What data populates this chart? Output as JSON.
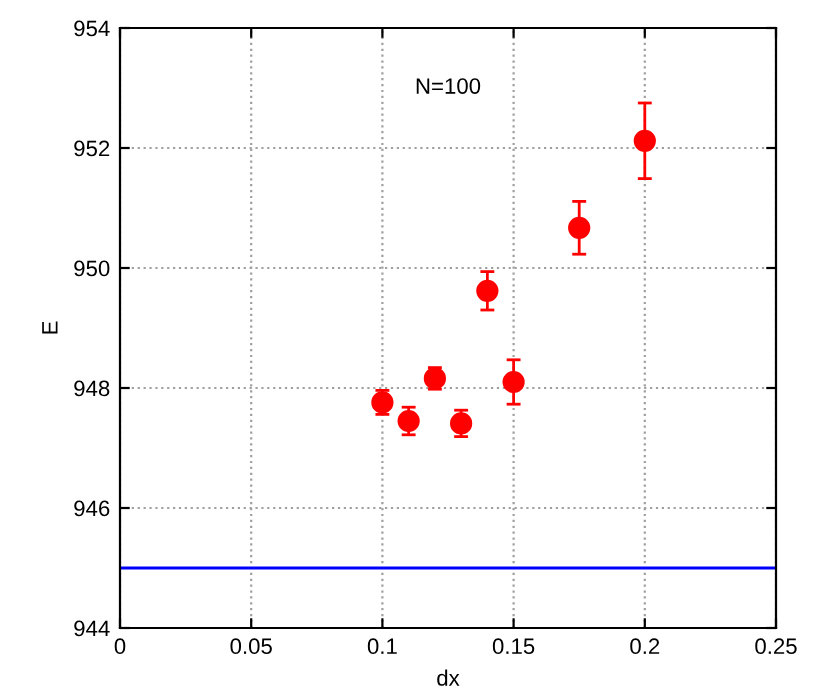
{
  "chart_data": {
    "type": "scatter",
    "xlabel": "dx",
    "ylabel": "E",
    "x": [
      0.1,
      0.11,
      0.12,
      0.13,
      0.14,
      0.15,
      0.175,
      0.2
    ],
    "series": [
      {
        "color": "#ff0000",
        "values": [
          947.76,
          947.45,
          948.16,
          947.41,
          949.62,
          948.1,
          950.67,
          952.12
        ],
        "errors": [
          0.2,
          0.23,
          0.18,
          0.22,
          0.32,
          0.37,
          0.44,
          0.63
        ]
      }
    ],
    "marker": "circle",
    "xlim": [
      0,
      0.25
    ],
    "xticks": [
      0,
      0.05,
      0.1,
      0.15,
      0.2,
      0.25
    ],
    "ylim": [
      944,
      954
    ],
    "yticks": [
      944,
      946,
      948,
      950,
      952,
      954
    ],
    "grid": true,
    "ref_lines": [
      {
        "axis": "y",
        "value": 945,
        "color": "#0000ff"
      }
    ],
    "annotations": [
      "N=100"
    ]
  }
}
